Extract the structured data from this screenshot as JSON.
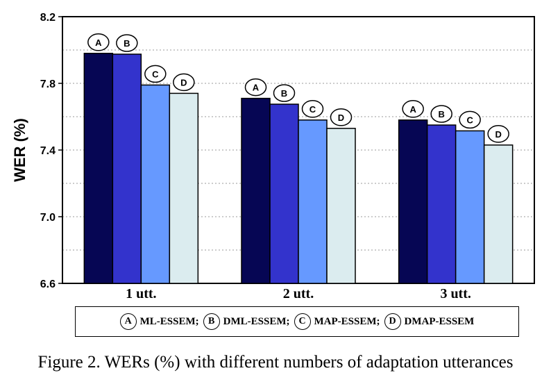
{
  "chart_data": {
    "type": "bar",
    "categories": [
      "1 utt.",
      "2 utt.",
      "3 utt."
    ],
    "series": [
      {
        "name": "ML-ESSEM",
        "tag": "A",
        "color": "#060654",
        "values": [
          7.98,
          7.71,
          7.58
        ]
      },
      {
        "name": "DML-ESSEM",
        "tag": "B",
        "color": "#3333cc",
        "values": [
          7.975,
          7.675,
          7.55
        ]
      },
      {
        "name": "MAP-ESSEM",
        "tag": "C",
        "color": "#6699ff",
        "values": [
          7.79,
          7.58,
          7.515
        ]
      },
      {
        "name": "DMAP-ESSEM",
        "tag": "D",
        "color": "#dbecef",
        "values": [
          7.74,
          7.53,
          7.43
        ]
      }
    ],
    "ylabel": "WER (%)",
    "xlabel": "",
    "ylim": [
      6.6,
      8.2
    ],
    "yticks": [
      "6.6",
      "7.0",
      "7.4",
      "7.8",
      "8.2"
    ],
    "grid": true,
    "legend_placement": "bottom"
  },
  "legend": [
    {
      "tag": "A",
      "label": "ML-ESSEM;"
    },
    {
      "tag": "B",
      "label": "DML-ESSEM;"
    },
    {
      "tag": "C",
      "label": "MAP-ESSEM;"
    },
    {
      "tag": "D",
      "label": "DMAP-ESSEM"
    }
  ],
  "caption": "Figure 2. WERs (%) with different numbers of adaptation utterances"
}
